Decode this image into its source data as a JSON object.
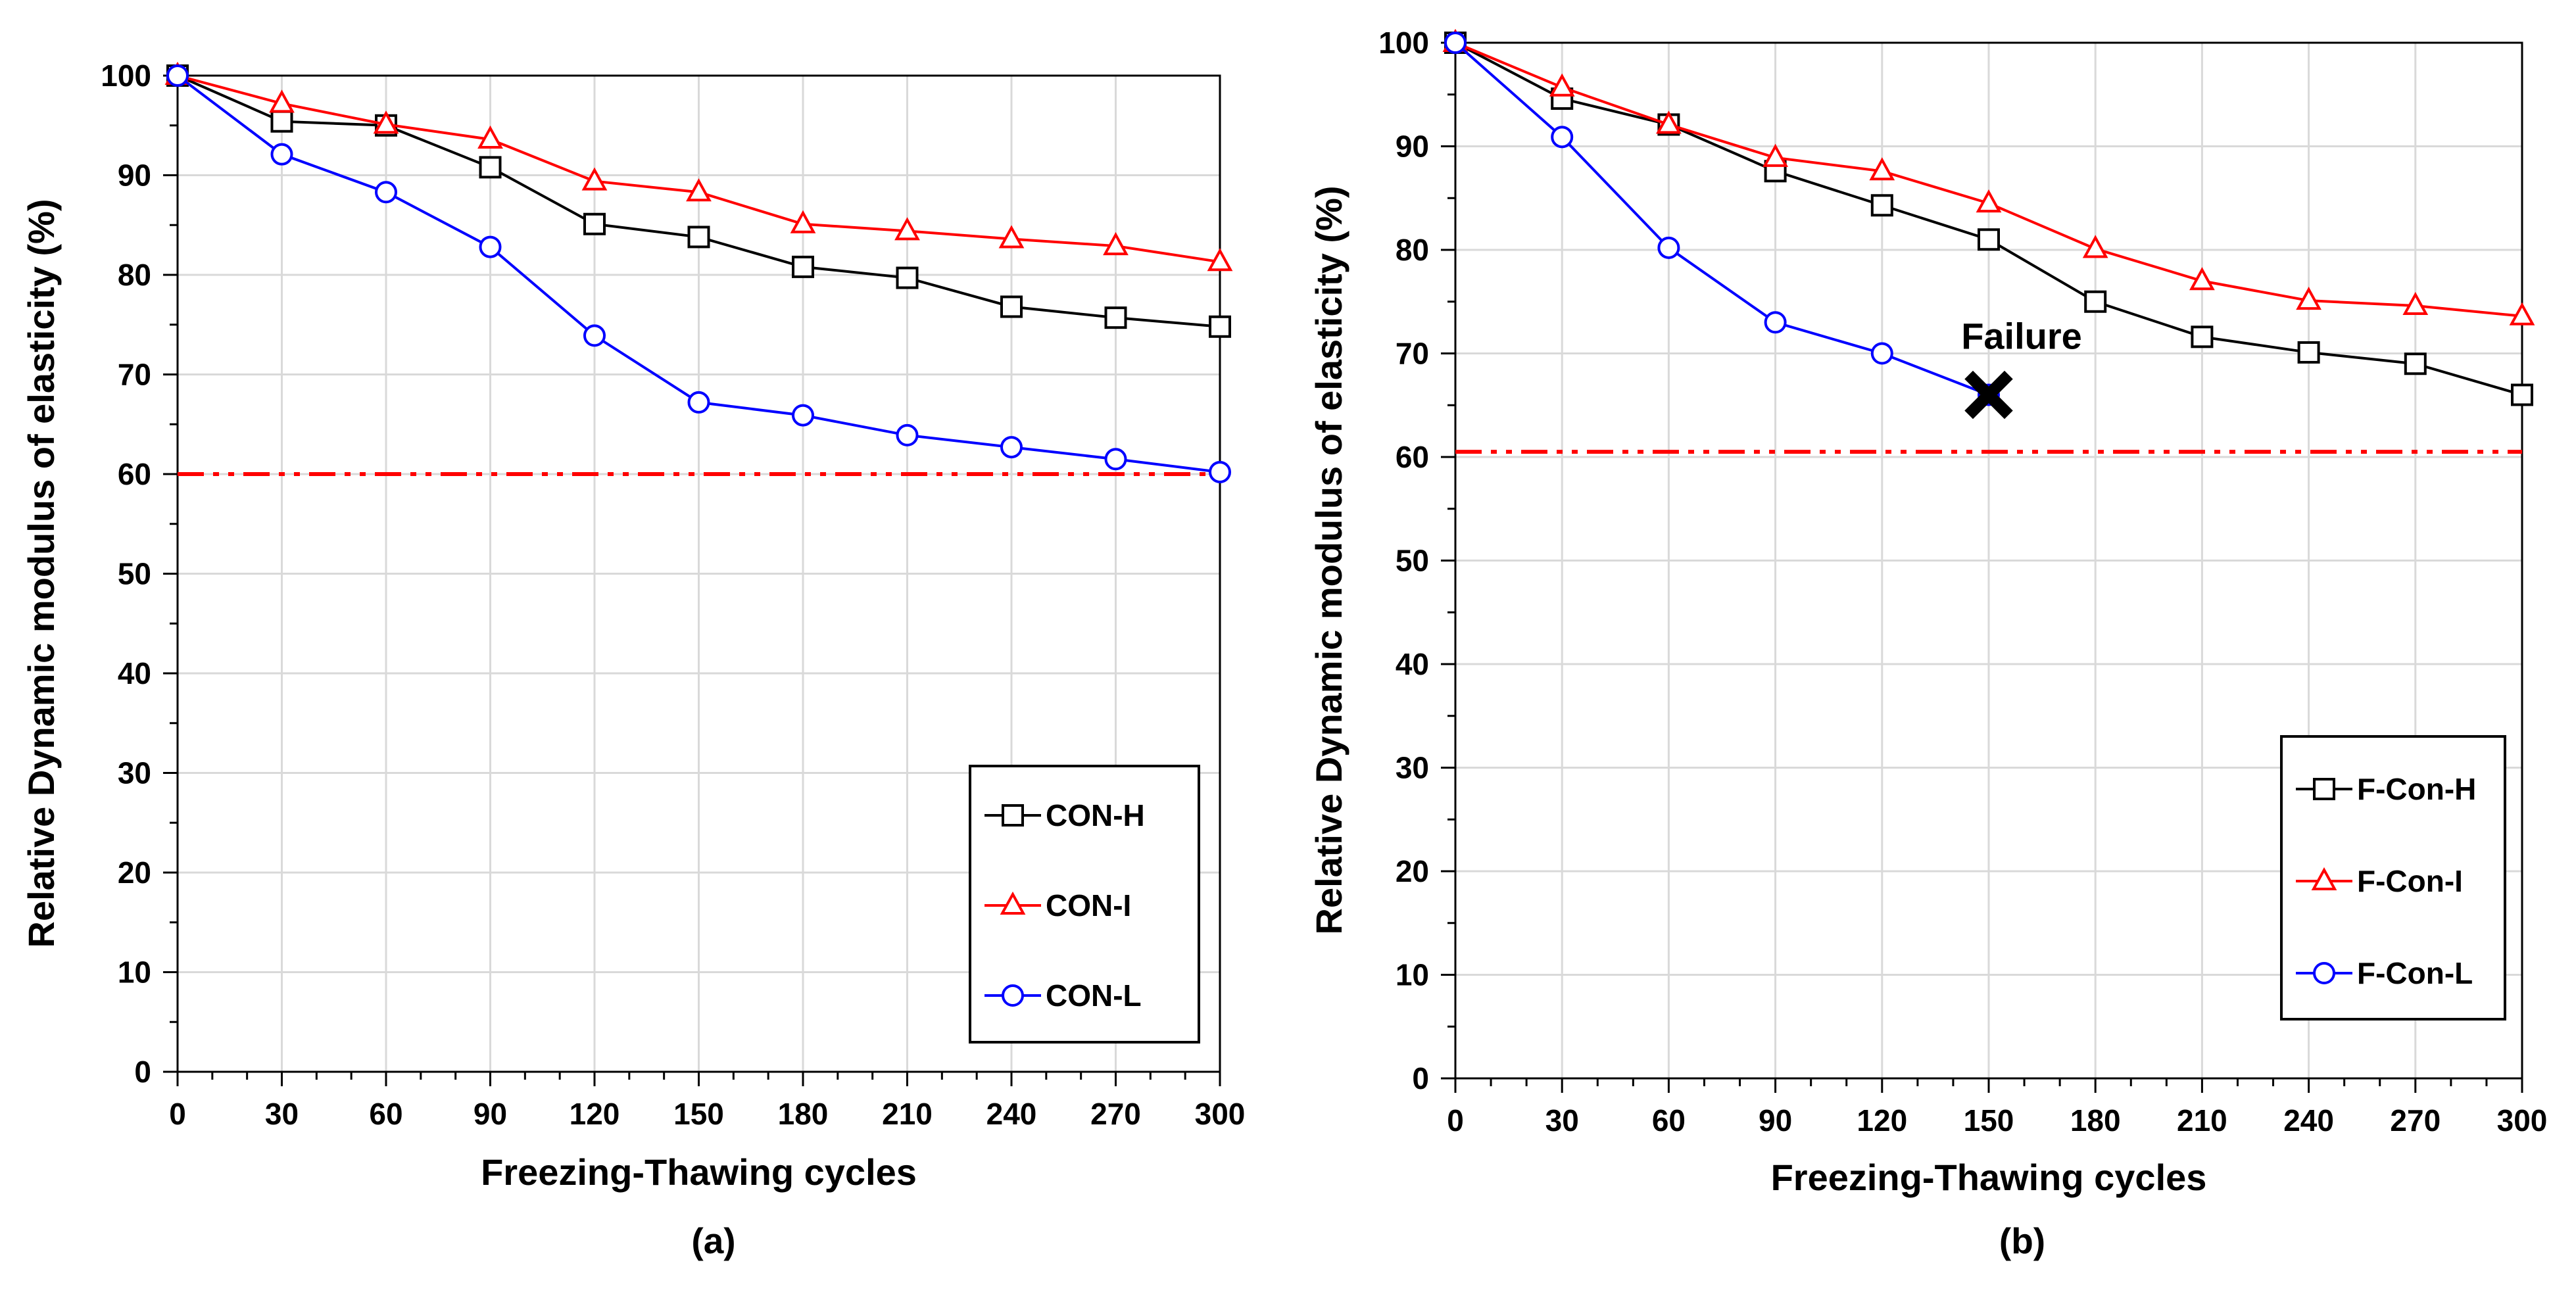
{
  "colors": {
    "H": "#000000",
    "I": "#ff0000",
    "L": "#0000ff",
    "limit": "#ff0000",
    "grid": "#d9d9d9"
  },
  "chart_data": [
    {
      "type": "line",
      "panel_label": "(a)",
      "xlabel": "Freezing-Thawing cycles",
      "ylabel": "Relative Dynamic modulus of elasticity (%)",
      "xlim": [
        0,
        300
      ],
      "ylim": [
        0,
        100
      ],
      "xticks": [
        0,
        30,
        60,
        90,
        120,
        150,
        180,
        210,
        240,
        270,
        300
      ],
      "yticks": [
        0,
        10,
        20,
        30,
        40,
        50,
        60,
        70,
        80,
        90,
        100
      ],
      "grid": true,
      "limit_line": {
        "y": 60,
        "style": "dash-dot-dot"
      },
      "legend_position": "bottom-right",
      "series": [
        {
          "name": "CON-H",
          "marker": "square",
          "color": "#000000",
          "x": [
            0,
            30,
            60,
            90,
            120,
            150,
            180,
            210,
            240,
            270,
            300
          ],
          "y": [
            100,
            95.4,
            95,
            90.8,
            85.1,
            83.8,
            80.8,
            79.7,
            76.8,
            75.7,
            74.8
          ]
        },
        {
          "name": "CON-I",
          "marker": "triangle",
          "color": "#ff0000",
          "x": [
            0,
            30,
            60,
            90,
            120,
            150,
            180,
            210,
            240,
            270,
            300
          ],
          "y": [
            100,
            97.2,
            95.1,
            93.6,
            89.4,
            88.3,
            85.1,
            84.4,
            83.6,
            82.9,
            81.3
          ]
        },
        {
          "name": "CON-L",
          "marker": "circle",
          "color": "#0000ff",
          "x": [
            0,
            30,
            60,
            90,
            120,
            150,
            180,
            210,
            240,
            270,
            300
          ],
          "y": [
            100,
            92.1,
            88.3,
            82.8,
            73.9,
            67.2,
            65.9,
            63.9,
            62.7,
            61.5,
            60.2
          ]
        }
      ]
    },
    {
      "type": "line",
      "panel_label": "(b)",
      "xlabel": "Freezing-Thawing cycles",
      "ylabel": "Relative Dynamic modulus of elasticity (%)",
      "xlim": [
        0,
        300
      ],
      "ylim": [
        0,
        100
      ],
      "xticks": [
        0,
        30,
        60,
        90,
        120,
        150,
        180,
        210,
        240,
        270,
        300
      ],
      "yticks": [
        0,
        10,
        20,
        30,
        40,
        50,
        60,
        70,
        80,
        90,
        100
      ],
      "grid": true,
      "limit_line": {
        "y": 60.5,
        "style": "dash-dot-dot"
      },
      "legend_position": "bottom-right",
      "annotation": {
        "text": "Failure",
        "x": 150,
        "y": 66
      },
      "series": [
        {
          "name": "F-Con-H",
          "marker": "square",
          "color": "#000000",
          "x": [
            0,
            30,
            60,
            90,
            120,
            150,
            180,
            210,
            240,
            270,
            300
          ],
          "y": [
            100,
            94.6,
            92.1,
            87.6,
            84.3,
            81,
            75,
            71.6,
            70.1,
            69,
            66
          ]
        },
        {
          "name": "F-Con-I",
          "marker": "triangle",
          "color": "#ff0000",
          "x": [
            0,
            30,
            60,
            90,
            120,
            150,
            180,
            210,
            240,
            270,
            300
          ],
          "y": [
            100,
            95.7,
            92.1,
            88.9,
            87.6,
            84.5,
            80.1,
            77,
            75.1,
            74.6,
            73.6
          ]
        },
        {
          "name": "F-Con-L",
          "marker": "circle",
          "color": "#0000ff",
          "x": [
            0,
            30,
            60,
            90,
            120,
            150
          ],
          "y": [
            100,
            90.9,
            80.2,
            73,
            70,
            66
          ]
        }
      ]
    }
  ]
}
